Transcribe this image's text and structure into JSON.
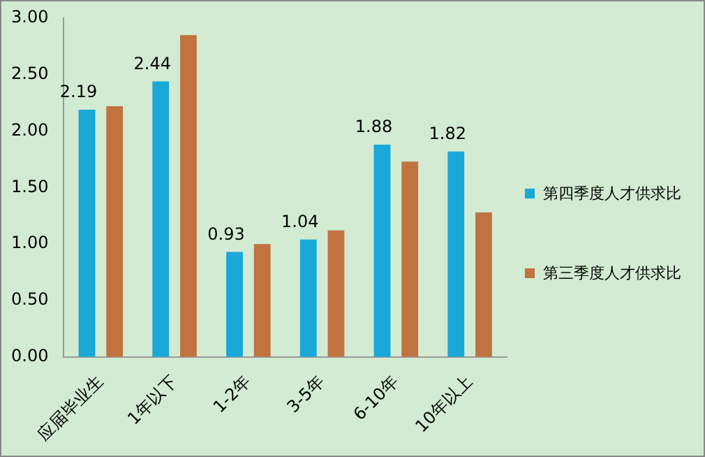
{
  "chart_data": {
    "type": "bar",
    "categories": [
      "应届毕业生",
      "1年以下",
      "1-2年",
      "3-5年",
      "6-10年",
      "10年以上"
    ],
    "series": [
      {
        "name": "第四季度人才供求比",
        "color": "#1aa8d8",
        "values": [
          2.19,
          2.44,
          0.93,
          1.04,
          1.88,
          1.82
        ],
        "value_labels": [
          "2.19",
          "2.44",
          "0.93",
          "1.04",
          "1.88",
          "1.82"
        ]
      },
      {
        "name": "第三季度人才供求比",
        "color": "#c0733f",
        "values": [
          2.22,
          2.85,
          1.0,
          1.12,
          1.73,
          1.28
        ]
      }
    ],
    "ylim": [
      0,
      3
    ],
    "yticks": [
      {
        "value": 0,
        "label": "0.00"
      },
      {
        "value": 0.5,
        "label": "0.50"
      },
      {
        "value": 1,
        "label": "1.00"
      },
      {
        "value": 1.5,
        "label": "1.50"
      },
      {
        "value": 2,
        "label": "2.00"
      },
      {
        "value": 2.5,
        "label": "2.50"
      },
      {
        "value": 3,
        "label": "3.00"
      }
    ],
    "grid": false,
    "legend": "right"
  }
}
